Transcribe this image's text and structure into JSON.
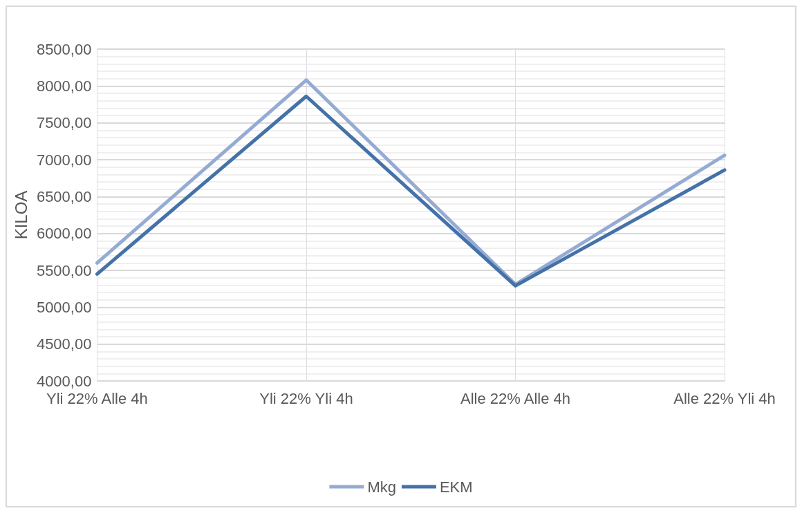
{
  "chart_data": {
    "type": "line",
    "ylabel": "KILOA",
    "categories": [
      "Yli 22% Alle 4h",
      "Yli 22% Yli 4h",
      "Alle 22% Alle 4h",
      "Alle 22% Yli 4h"
    ],
    "series": [
      {
        "name": "Mkg",
        "color": "#95abd3",
        "values": [
          5600,
          8080,
          5310,
          7060
        ]
      },
      {
        "name": "EKM",
        "color": "#4472a8",
        "values": [
          5450,
          7860,
          5290,
          6860
        ]
      }
    ],
    "ylim": [
      4000,
      8500
    ],
    "yticks": [
      {
        "value": 4000,
        "label": "4000,00"
      },
      {
        "value": 4500,
        "label": "4500,00"
      },
      {
        "value": 5000,
        "label": "5000,00"
      },
      {
        "value": 5500,
        "label": "5500,00"
      },
      {
        "value": 6000,
        "label": "6000,00"
      },
      {
        "value": 6500,
        "label": "6500,00"
      },
      {
        "value": 7000,
        "label": "7000,00"
      },
      {
        "value": 7500,
        "label": "7500,00"
      },
      {
        "value": 8000,
        "label": "8000,00"
      },
      {
        "value": 8500,
        "label": "8500,00"
      }
    ],
    "grid": true,
    "legend": "bottom",
    "marker": "none",
    "line_style": "solid"
  }
}
